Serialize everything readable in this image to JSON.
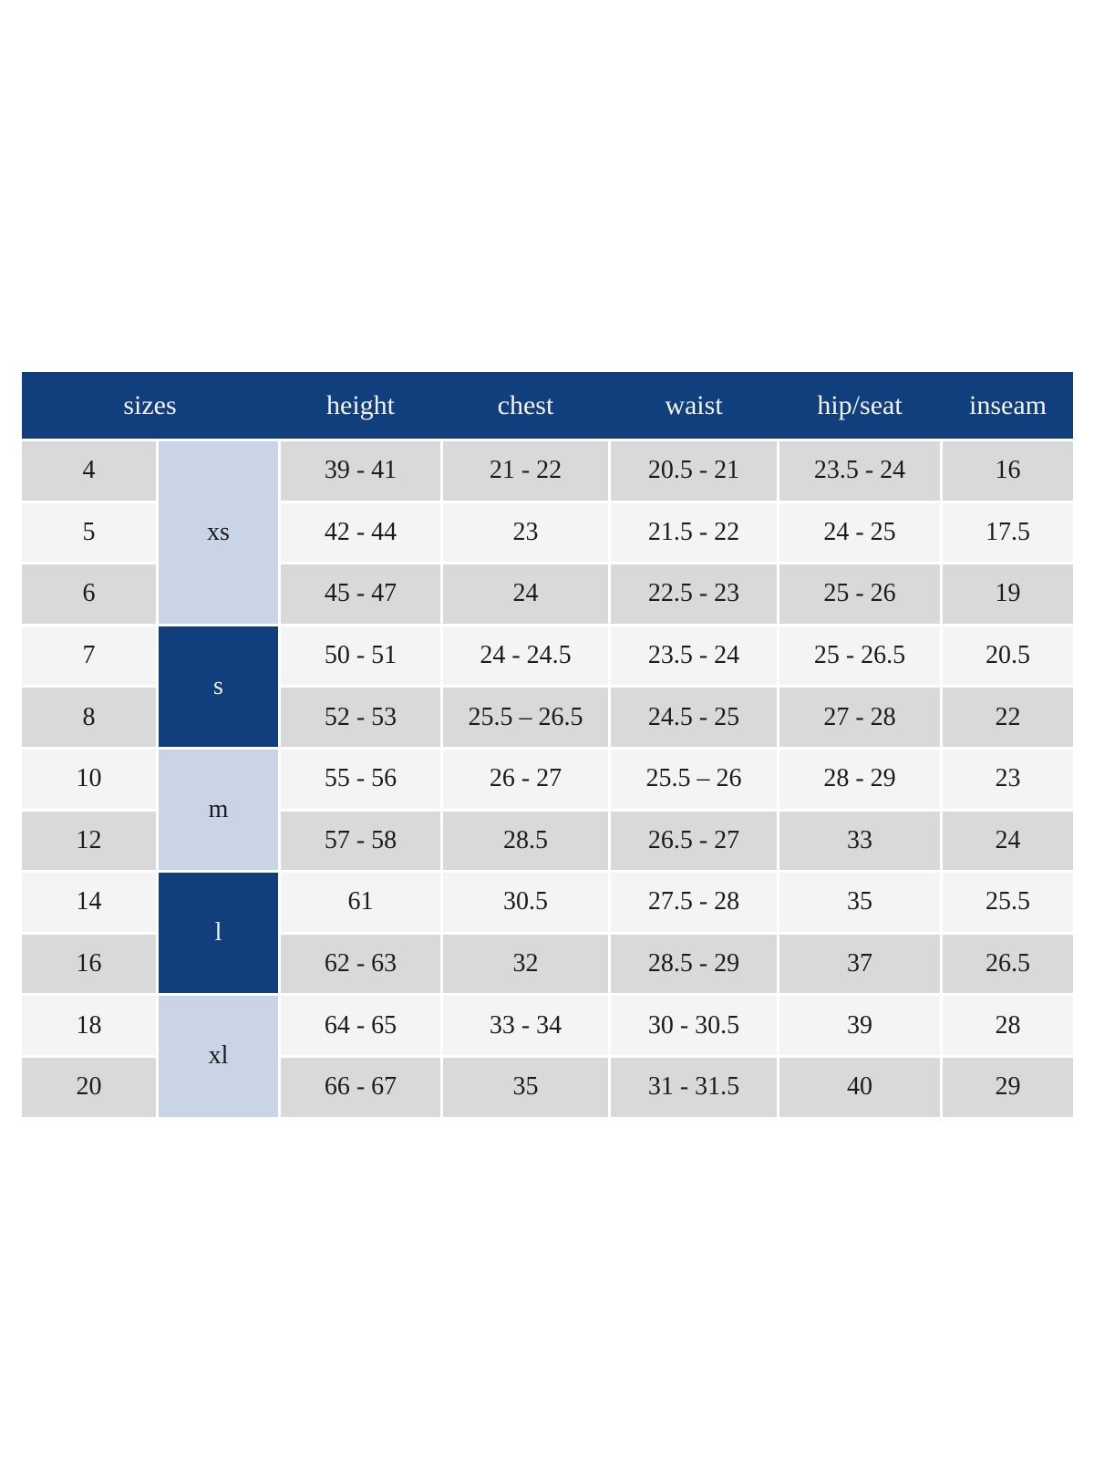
{
  "colors": {
    "header_bg": "#113e7d",
    "header_text": "#f2f3f5",
    "group_dark_bg": "#113e7d",
    "group_light_bg": "#c9d5e6",
    "row_gray": "#d9d9d9",
    "row_light": "#f4f4f4",
    "cell_text": "#1b1b1b",
    "divider": "#ffffff",
    "page_background": "#ffffff"
  },
  "table": {
    "header": {
      "sizes": "sizes",
      "height": "height",
      "chest": "chest",
      "waist": "waist",
      "hip_seat": "hip/seat",
      "inseam": "inseam"
    },
    "groups": [
      {
        "label": "xs",
        "style": "light",
        "row_span": 3
      },
      {
        "label": "s",
        "style": "dark",
        "row_span": 2
      },
      {
        "label": "m",
        "style": "light",
        "row_span": 2
      },
      {
        "label": "l",
        "style": "dark",
        "row_span": 2
      },
      {
        "label": "xl",
        "style": "light",
        "row_span": 2
      }
    ],
    "rows": [
      {
        "size": "4",
        "group": "xs",
        "height": "39 - 41",
        "chest": "21 - 22",
        "waist": "20.5 - 21",
        "hip_seat": "23.5 - 24",
        "inseam": "16"
      },
      {
        "size": "5",
        "group": "xs",
        "height": "42 - 44",
        "chest": "23",
        "waist": "21.5 - 22",
        "hip_seat": "24 - 25",
        "inseam": "17.5"
      },
      {
        "size": "6",
        "group": "xs",
        "height": "45 - 47",
        "chest": "24",
        "waist": "22.5 - 23",
        "hip_seat": "25 - 26",
        "inseam": "19"
      },
      {
        "size": "7",
        "group": "s",
        "height": "50 - 51",
        "chest": "24 - 24.5",
        "waist": "23.5 - 24",
        "hip_seat": "25 - 26.5",
        "inseam": "20.5"
      },
      {
        "size": "8",
        "group": "s",
        "height": "52 - 53",
        "chest": "25.5 – 26.5",
        "waist": "24.5 - 25",
        "hip_seat": "27 - 28",
        "inseam": "22"
      },
      {
        "size": "10",
        "group": "m",
        "height": "55 - 56",
        "chest": "26 - 27",
        "waist": "25.5 – 26",
        "hip_seat": "28 - 29",
        "inseam": "23"
      },
      {
        "size": "12",
        "group": "m",
        "height": "57 - 58",
        "chest": "28.5",
        "waist": "26.5 - 27",
        "hip_seat": "33",
        "inseam": "24"
      },
      {
        "size": "14",
        "group": "l",
        "height": "61",
        "chest": "30.5",
        "waist": "27.5 - 28",
        "hip_seat": "35",
        "inseam": "25.5"
      },
      {
        "size": "16",
        "group": "l",
        "height": "62 - 63",
        "chest": "32",
        "waist": "28.5 - 29",
        "hip_seat": "37",
        "inseam": "26.5"
      },
      {
        "size": "18",
        "group": "xl",
        "height": "64 - 65",
        "chest": "33 - 34",
        "waist": "30 - 30.5",
        "hip_seat": "39",
        "inseam": "28"
      },
      {
        "size": "20",
        "group": "xl",
        "height": "66 - 67",
        "chest": "35",
        "waist": "31 - 31.5",
        "hip_seat": "40",
        "inseam": "29"
      }
    ]
  }
}
